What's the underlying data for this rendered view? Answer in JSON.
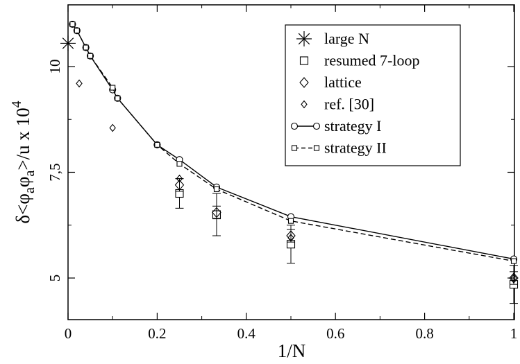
{
  "chart_data": {
    "type": "line",
    "title": "",
    "xlabel": "1/N",
    "ylabel": "δ<φ_aφ_a>/u x 10^4",
    "ylabel_parts": {
      "base": "δ<φ",
      "sub1": "a",
      "mid": "φ",
      "sub2": "a",
      "tail": ">/u x 10",
      "sup": "4"
    },
    "xlim": [
      0,
      1
    ],
    "ylim": [
      4.0,
      11.0
    ],
    "xticks": [
      {
        "value": 0,
        "label": "0"
      },
      {
        "value": 0.2,
        "label": "0.2"
      },
      {
        "value": 0.4,
        "label": "0.4"
      },
      {
        "value": 0.6,
        "label": "0.6"
      },
      {
        "value": 0.8,
        "label": "0.8"
      },
      {
        "value": 1,
        "label": "1"
      }
    ],
    "yticks": [
      {
        "value": 5,
        "label": "5"
      },
      {
        "value": 7.5,
        "label": "7,5"
      },
      {
        "value": 10,
        "label": "10"
      }
    ],
    "legend_position": "top-right",
    "series": [
      {
        "name": "large N",
        "marker": "star",
        "style": "points",
        "points": [
          {
            "x": 0,
            "y": 10.55
          }
        ]
      },
      {
        "name": "resumed 7-loop",
        "marker": "square",
        "style": "points",
        "points": [
          {
            "x": 0.25,
            "y": 7.0,
            "err": 0.35
          },
          {
            "x": 0.3333,
            "y": 6.5,
            "err": 0.5
          },
          {
            "x": 0.5,
            "y": 5.8,
            "err": 0.45
          },
          {
            "x": 1,
            "y": 4.85,
            "err": 0.45
          }
        ]
      },
      {
        "name": "lattice",
        "marker": "diamond",
        "style": "points",
        "points": [
          {
            "x": 0.25,
            "y": 7.2,
            "err": 0.15
          },
          {
            "x": 0.3333,
            "y": 6.55,
            "err": 0.15
          },
          {
            "x": 0.5,
            "y": 6.0,
            "err": 0.15
          },
          {
            "x": 1,
            "y": 5.0,
            "err": 0.15
          }
        ]
      },
      {
        "name": "ref. [30]",
        "marker": "small-diamond",
        "style": "points",
        "points": [
          {
            "x": 0.025,
            "y": 9.6
          },
          {
            "x": 0.1,
            "y": 8.55
          },
          {
            "x": 0.25,
            "y": 7.35
          },
          {
            "x": 0.5,
            "y": 5.95
          },
          {
            "x": 1,
            "y": 5.0
          }
        ]
      },
      {
        "name": "strategy I",
        "marker": "circle",
        "style": "solid",
        "points": [
          {
            "x": 0.01,
            "y": 11.0
          },
          {
            "x": 0.02,
            "y": 10.85
          },
          {
            "x": 0.04,
            "y": 10.45
          },
          {
            "x": 0.05,
            "y": 10.25
          },
          {
            "x": 0.1,
            "y": 9.45
          },
          {
            "x": 0.1111,
            "y": 9.25
          },
          {
            "x": 0.2,
            "y": 8.15
          },
          {
            "x": 0.25,
            "y": 7.8
          },
          {
            "x": 0.3333,
            "y": 7.15
          },
          {
            "x": 0.5,
            "y": 6.45
          },
          {
            "x": 1,
            "y": 5.45
          }
        ]
      },
      {
        "name": "strategy II",
        "marker": "square-small",
        "style": "dashed",
        "points": [
          {
            "x": 0.01,
            "y": 11.0
          },
          {
            "x": 0.02,
            "y": 10.85
          },
          {
            "x": 0.04,
            "y": 10.45
          },
          {
            "x": 0.05,
            "y": 10.25
          },
          {
            "x": 0.1,
            "y": 9.5
          },
          {
            "x": 0.1111,
            "y": 9.25
          },
          {
            "x": 0.2,
            "y": 8.15
          },
          {
            "x": 0.25,
            "y": 7.7
          },
          {
            "x": 0.3333,
            "y": 7.1
          },
          {
            "x": 0.5,
            "y": 6.35
          },
          {
            "x": 1,
            "y": 5.4
          }
        ]
      }
    ]
  }
}
